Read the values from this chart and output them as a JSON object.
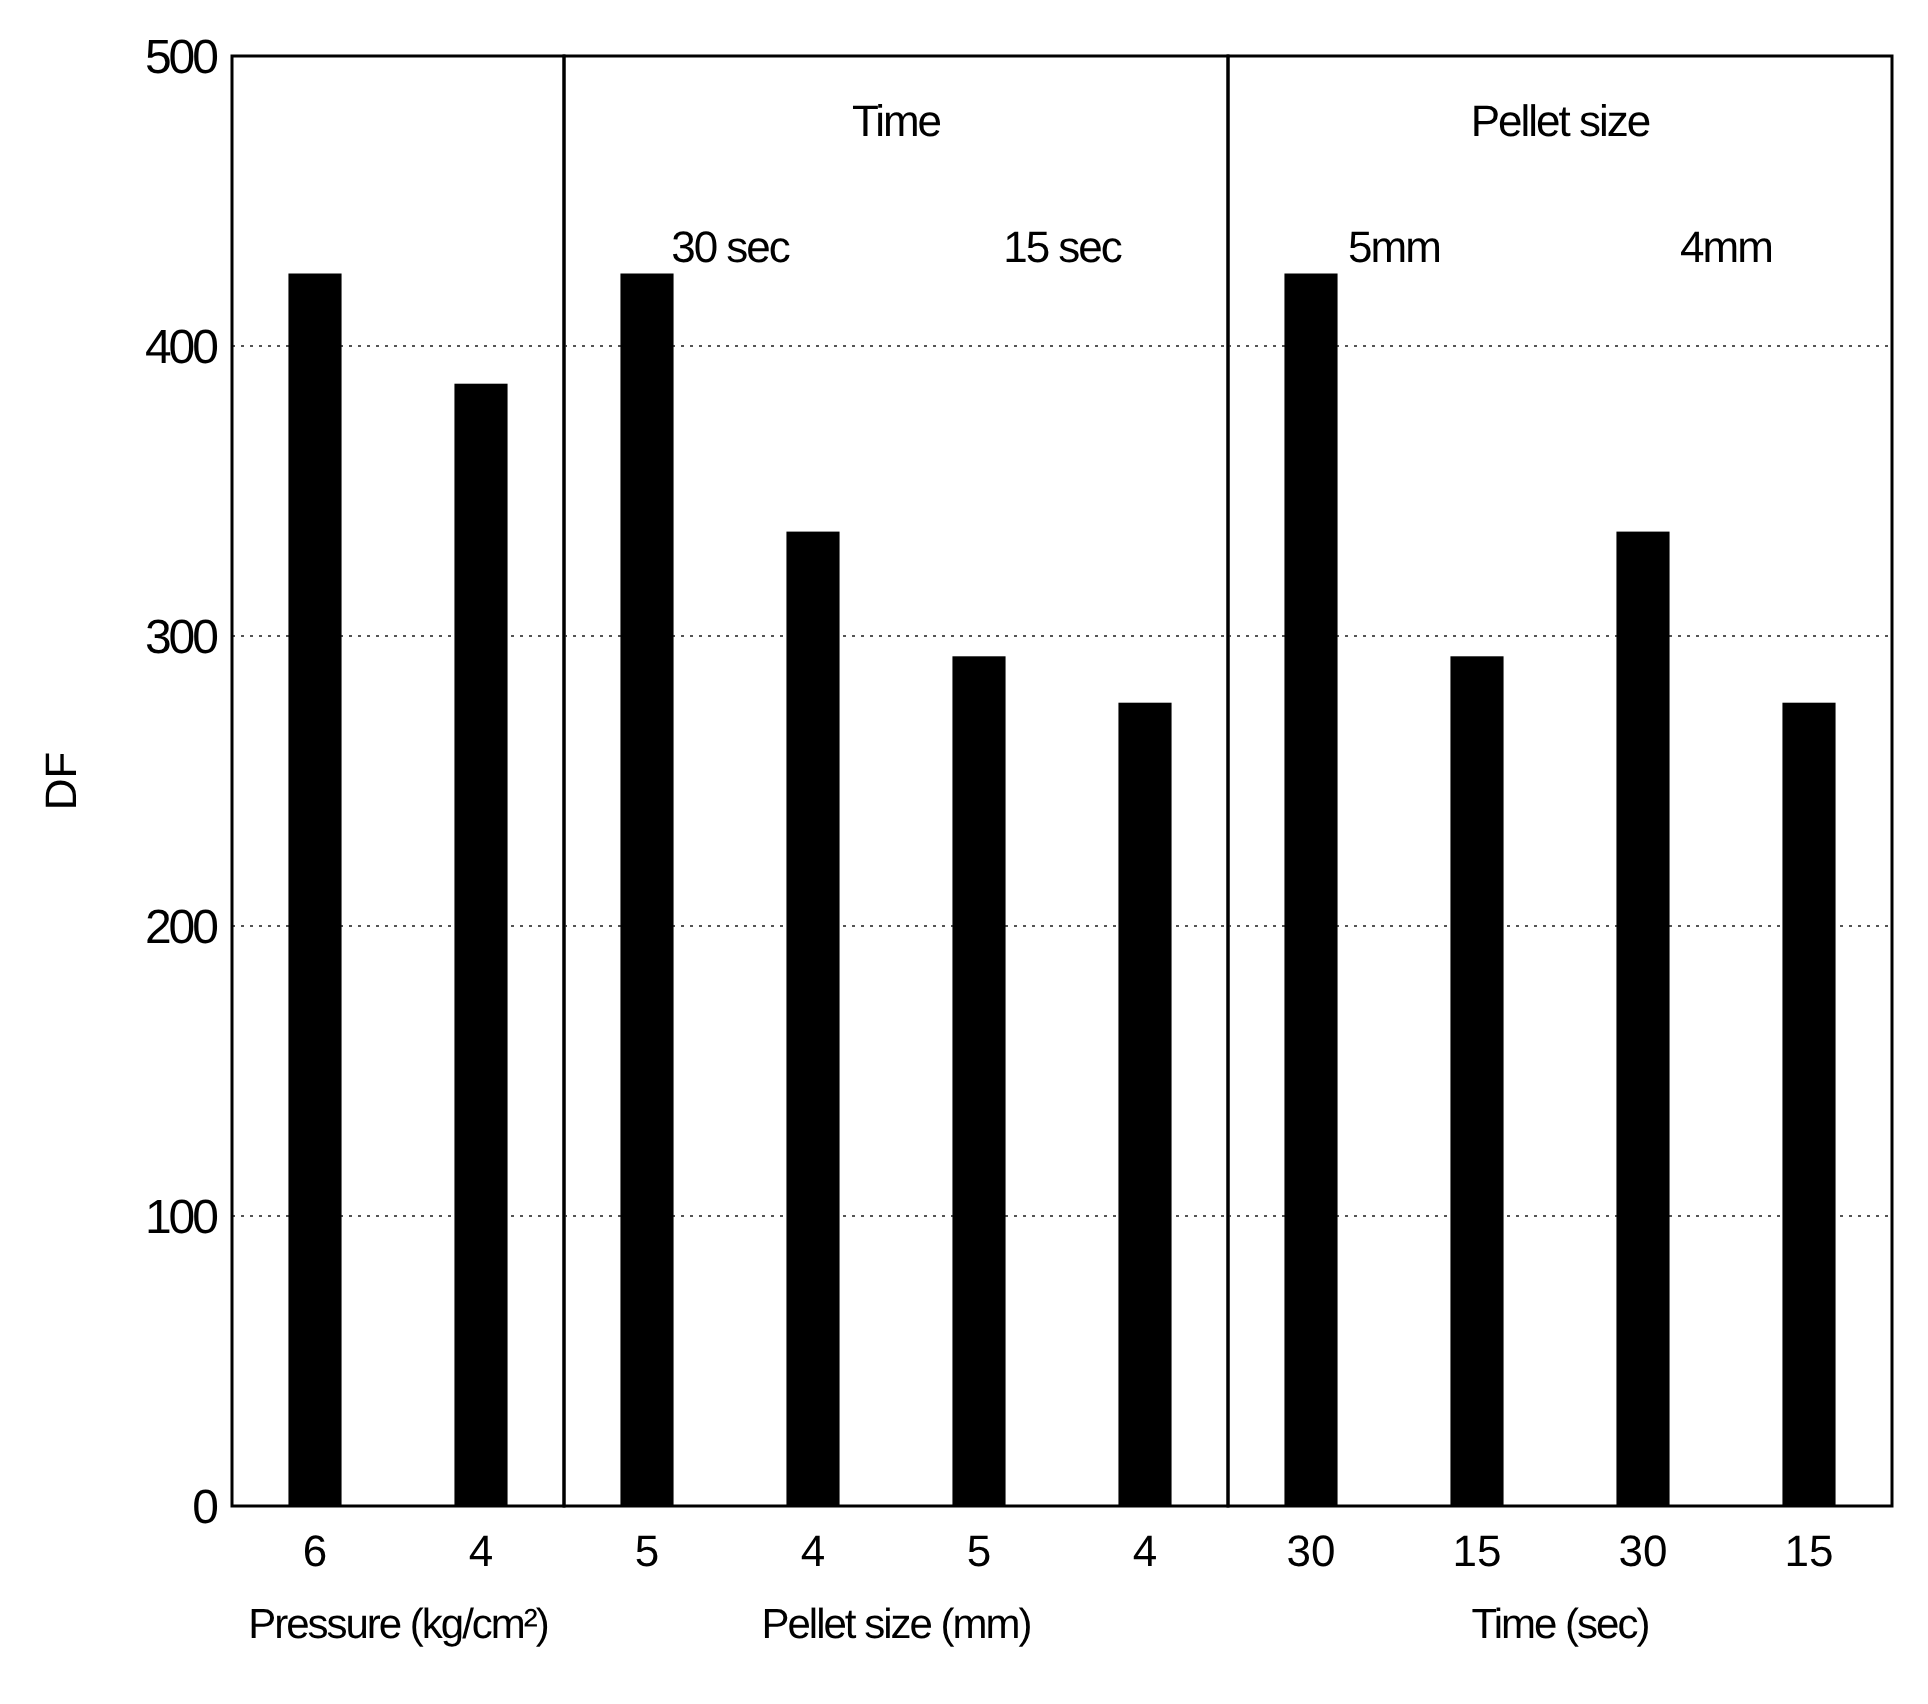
{
  "chart_data": [
    {
      "type": "bar",
      "categories": [
        "6",
        "4"
      ],
      "values": [
        425,
        387
      ],
      "color": "#000000",
      "ylim": [
        0,
        500
      ],
      "yticks": [
        0,
        100,
        200,
        300,
        400,
        500
      ],
      "grid": "y",
      "ylabel": "DF",
      "xlabel": "Pressure (kg/cm²)"
    },
    {
      "type": "bar",
      "title": "Time",
      "annotations": [
        "30 sec",
        "15 sec"
      ],
      "categories": [
        "5",
        "4",
        "5",
        "4"
      ],
      "values": [
        425,
        336,
        293,
        277
      ],
      "color": "#000000",
      "ylim": [
        0,
        500
      ],
      "yticks": [
        0,
        100,
        200,
        300,
        400,
        500
      ],
      "grid": "y",
      "tick_labels": "x",
      "xlabel": "Pellet size (mm)"
    },
    {
      "type": "bar",
      "title": "Pellet size",
      "annotations": [
        "5mm",
        "4mm"
      ],
      "categories": [
        "30",
        "15",
        "30",
        "15"
      ],
      "values": [
        425,
        293,
        336,
        277
      ],
      "color": "#000000",
      "ylim": [
        0,
        500
      ],
      "yticks": [
        0,
        100,
        200,
        300,
        400,
        500
      ],
      "grid": "y",
      "tick_labels": "x",
      "xlabel": "Time (sec)"
    }
  ]
}
